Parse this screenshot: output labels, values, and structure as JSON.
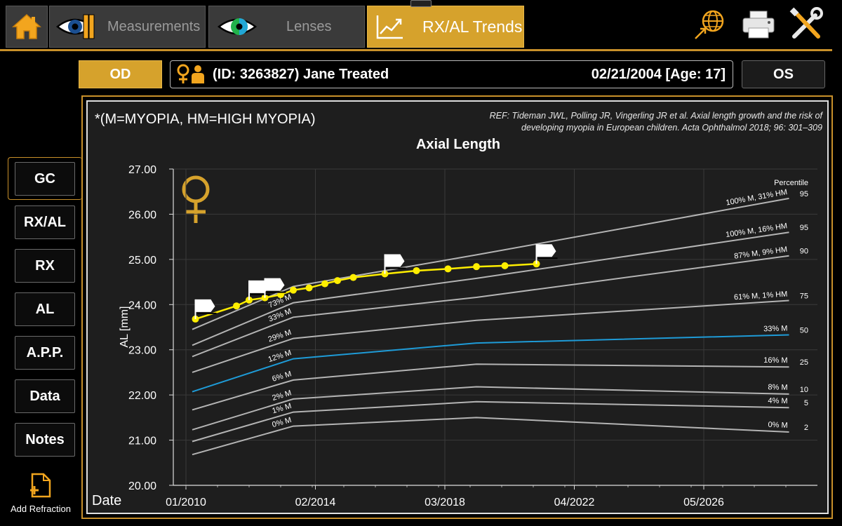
{
  "tabs": {
    "measurements": "Measurements",
    "lenses": "Lenses",
    "trends": "RX/AL Trends"
  },
  "patient": {
    "od_label": "OD",
    "os_label": "OS",
    "name": "(ID: 3263827) Jane Treated",
    "dob": "02/21/2004 [Age: 17]"
  },
  "sidebar": {
    "items": [
      {
        "label": "GC",
        "selected": true
      },
      {
        "label": "RX/AL",
        "selected": false
      },
      {
        "label": "RX",
        "selected": false
      },
      {
        "label": "AL",
        "selected": false
      },
      {
        "label": "A.P.P.",
        "selected": false
      },
      {
        "label": "Data",
        "selected": false
      },
      {
        "label": "Notes",
        "selected": false
      }
    ],
    "add_refraction": "Add Refraction"
  },
  "chart_header": {
    "legend_note": "*(M=MYOPIA, HM=HIGH MYOPIA)",
    "ref_line1": "REF: Tideman JWL, Polling JR, Vingerling JR et al. Axial length growth and the risk of",
    "ref_line2": "developing myopia in European children. Acta Ophthalmol 2018; 96: 301–309",
    "date_label": "Date"
  },
  "colors": {
    "accent": "#d6a22c",
    "patient_series": "#ffee00",
    "median_series": "#1e9bd7",
    "reference_series": "#b4b4b4"
  },
  "chart_data": {
    "type": "line",
    "title": "Axial Length",
    "xlabel": "Date",
    "ylabel": "AL [mm]",
    "ylim": [
      20.0,
      27.0
    ],
    "xlim": [
      2009.6,
      2030.0
    ],
    "yticks": [
      "20.00",
      "21.00",
      "22.00",
      "23.00",
      "24.00",
      "25.00",
      "26.00",
      "27.00"
    ],
    "xticks": [
      {
        "value": 2010.0,
        "label": "01/2010"
      },
      {
        "value": 2014.1,
        "label": "02/2014"
      },
      {
        "value": 2018.2,
        "label": "03/2018"
      },
      {
        "value": 2022.3,
        "label": "04/2022"
      },
      {
        "value": 2026.4,
        "label": "05/2026"
      }
    ],
    "percentile_header": "Percentile",
    "reference_x": [
      2010.2,
      2013.4,
      2019.2,
      2029.1
    ],
    "reference_series": [
      {
        "start_label": "0% M",
        "end_label": "0% M",
        "percentile": "2",
        "values": [
          20.68,
          21.31,
          21.5,
          21.18
        ],
        "median": false
      },
      {
        "start_label": "1% M",
        "end_label": "4% M",
        "percentile": "5",
        "values": [
          20.97,
          21.62,
          21.85,
          21.72
        ],
        "median": false
      },
      {
        "start_label": "2% M",
        "end_label": "8% M",
        "percentile": "10",
        "values": [
          21.23,
          21.91,
          22.18,
          22.02
        ],
        "median": false
      },
      {
        "start_label": "6% M",
        "end_label": "16% M",
        "percentile": "25",
        "values": [
          21.67,
          22.33,
          22.68,
          22.62
        ],
        "median": false
      },
      {
        "start_label": "12% M",
        "end_label": "33% M",
        "percentile": "50",
        "values": [
          22.07,
          22.8,
          23.15,
          23.33
        ],
        "median": true
      },
      {
        "start_label": "29% M",
        "end_label": "61% M, 1% HM",
        "percentile": "75",
        "values": [
          22.5,
          23.25,
          23.65,
          24.09
        ],
        "median": false
      },
      {
        "start_label": "33% M",
        "end_label": "87% M, 9% HM",
        "percentile": "90",
        "values": [
          22.85,
          23.72,
          24.16,
          25.08
        ],
        "median": false
      },
      {
        "start_label": "73% M",
        "end_label": "100% M, 16% HM",
        "percentile": "95",
        "values": [
          23.1,
          24.04,
          24.58,
          25.6
        ],
        "median": false
      },
      {
        "start_label": "",
        "end_label": "100% M, 31% HM",
        "percentile": "95",
        "values": [
          23.45,
          24.4,
          25.1,
          26.35
        ],
        "median": false
      }
    ],
    "patient_series": {
      "name": "Jane Treated",
      "x": [
        2010.3,
        2011.6,
        2012.0,
        2012.5,
        2013.0,
        2013.4,
        2013.9,
        2014.4,
        2014.8,
        2015.3,
        2016.3,
        2017.3,
        2018.3,
        2019.2,
        2020.1,
        2021.1
      ],
      "y": [
        23.68,
        23.97,
        24.1,
        24.15,
        24.22,
        24.32,
        24.37,
        24.46,
        24.53,
        24.6,
        24.68,
        24.75,
        24.79,
        24.84,
        24.86,
        24.9
      ],
      "flag_indices": [
        0,
        2,
        3,
        10,
        15
      ]
    }
  }
}
